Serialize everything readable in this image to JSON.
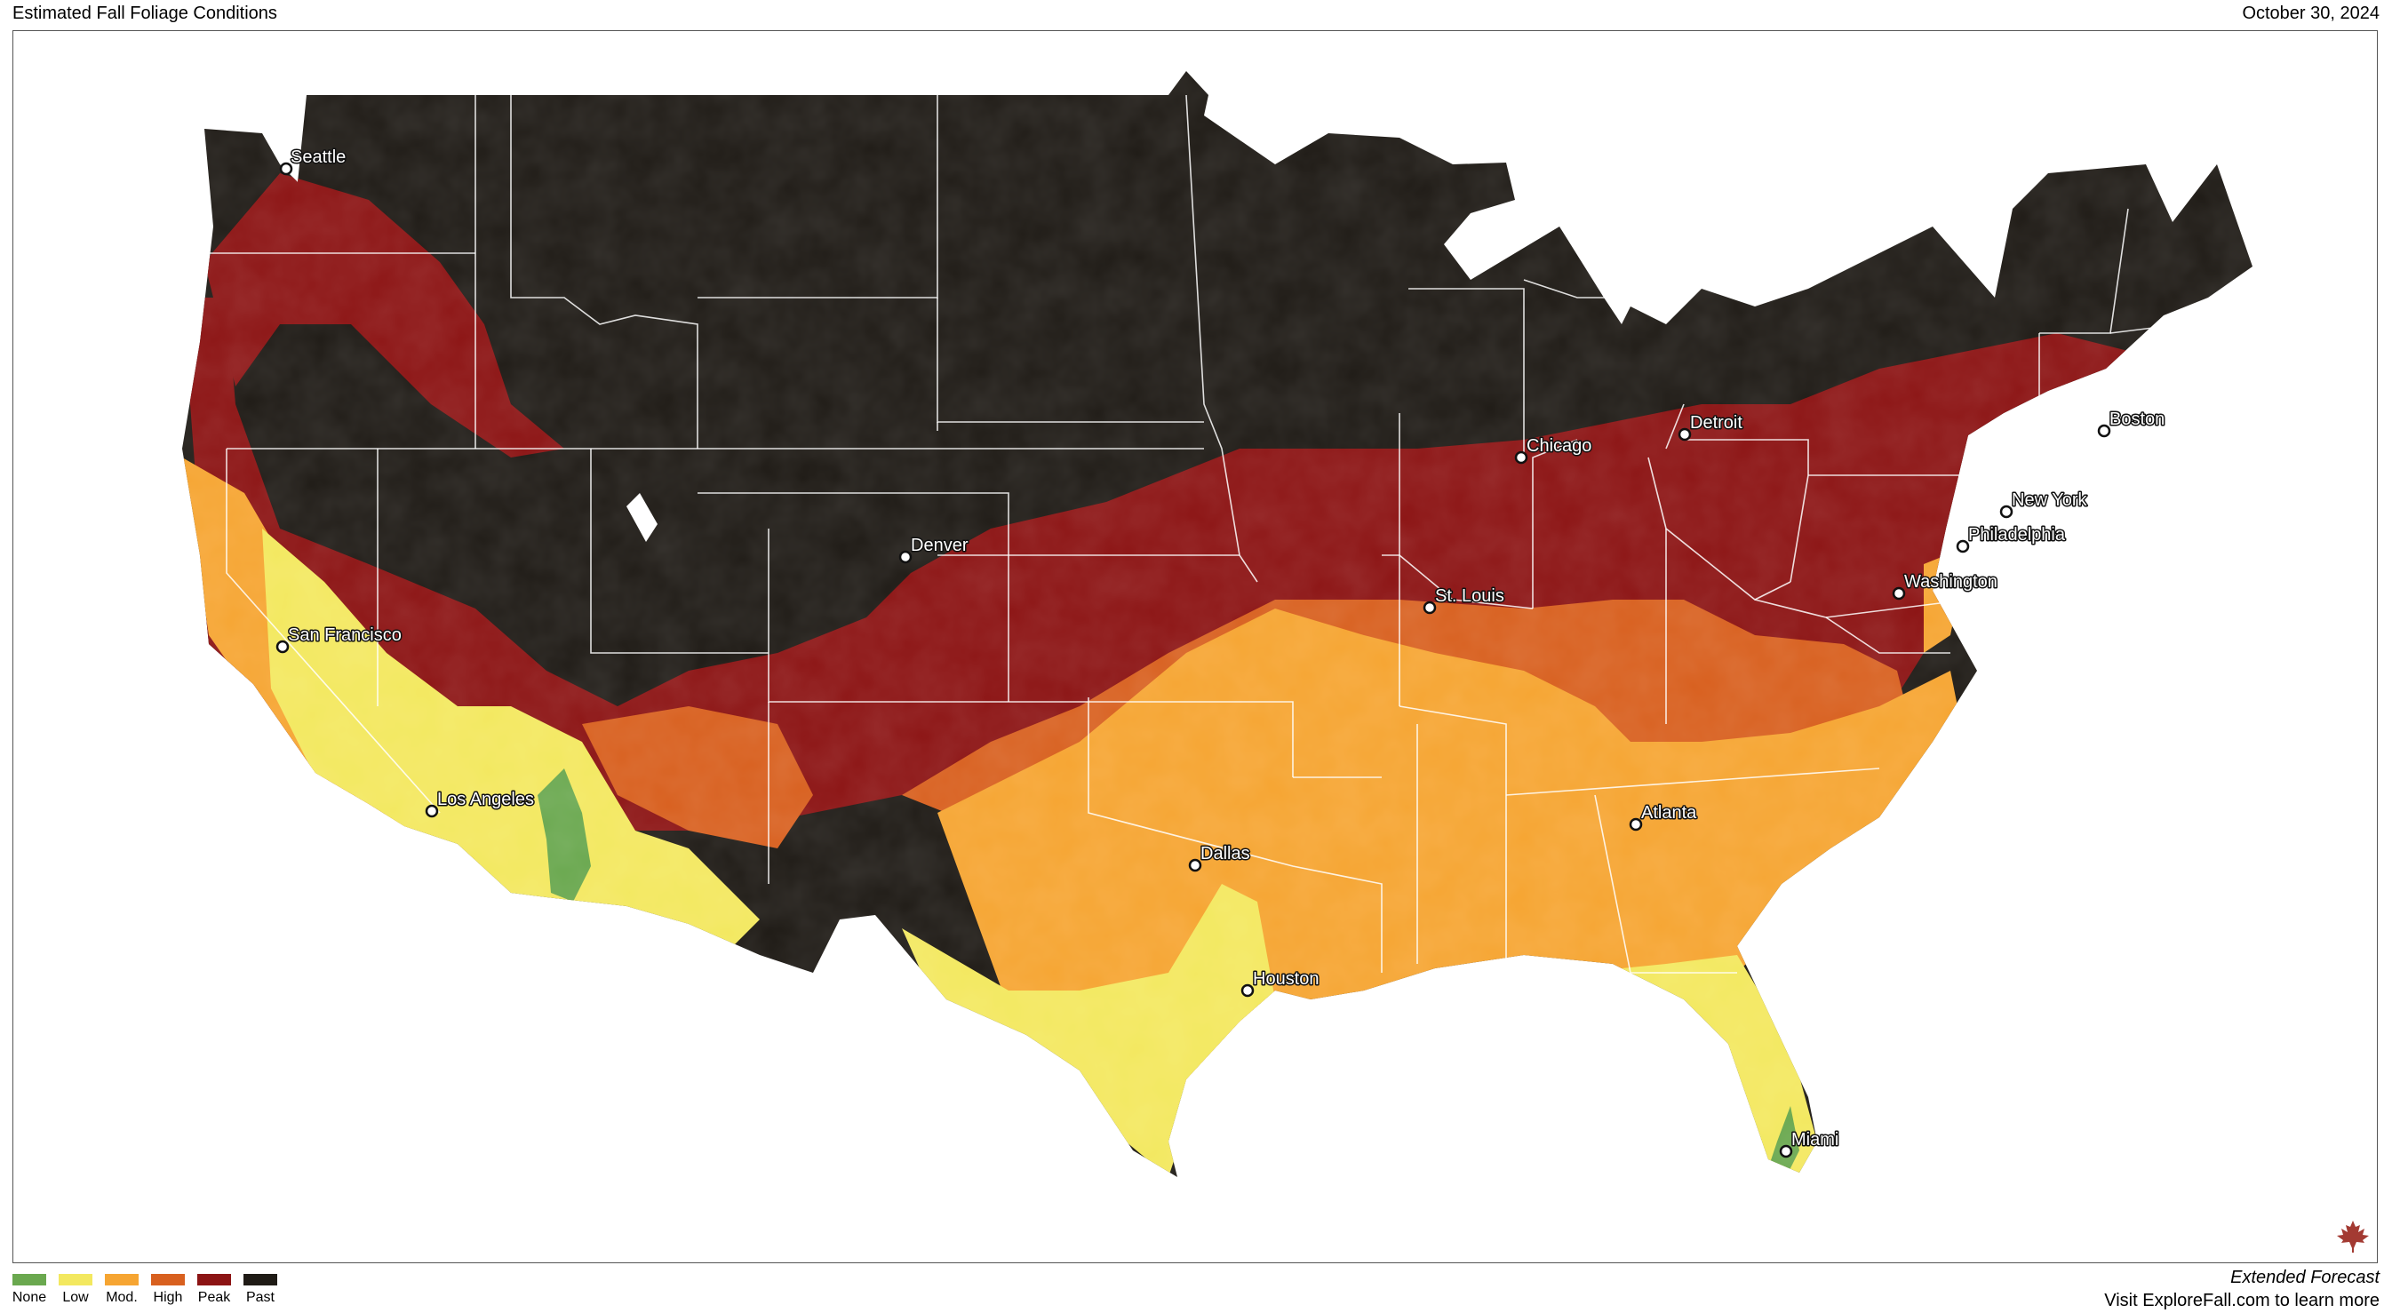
{
  "header": {
    "title": "Estimated Fall Foliage Conditions",
    "date": "October 30, 2024"
  },
  "legend": [
    {
      "label": "None",
      "color": "#6aa84f"
    },
    {
      "label": "Low",
      "color": "#f3e85f"
    },
    {
      "label": "Mod.",
      "color": "#f6a532"
    },
    {
      "label": "High",
      "color": "#d8601f"
    },
    {
      "label": "Peak",
      "color": "#8c1414"
    },
    {
      "label": "Past",
      "color": "#1f1b16"
    }
  ],
  "cities": [
    {
      "name": "Seattle"
    },
    {
      "name": "San Francisco"
    },
    {
      "name": "Los Angeles"
    },
    {
      "name": "Denver"
    },
    {
      "name": "Dallas"
    },
    {
      "name": "Houston"
    },
    {
      "name": "Chicago"
    },
    {
      "name": "St. Louis"
    },
    {
      "name": "Detroit"
    },
    {
      "name": "Atlanta"
    },
    {
      "name": "Miami"
    },
    {
      "name": "Washington"
    },
    {
      "name": "Philadelphia"
    },
    {
      "name": "New York"
    },
    {
      "name": "Boston"
    }
  ],
  "footer": {
    "forecast": "Extended Forecast",
    "cta": "Visit ExploreFall.com to learn more"
  },
  "logo": {
    "icon": "maple-leaf-icon",
    "color": "#a33a32"
  }
}
